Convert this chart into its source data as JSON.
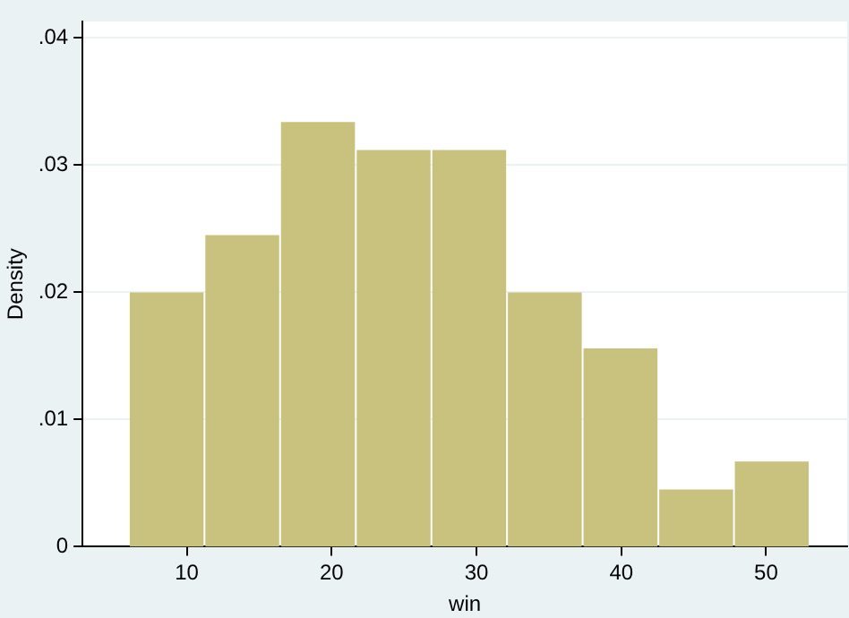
{
  "chart_data": {
    "type": "histogram",
    "xlabel": "win",
    "ylabel": "Density",
    "bins": [
      6,
      11.22,
      16.44,
      21.67,
      26.89,
      32.11,
      37.33,
      42.56,
      47.78,
      53
    ],
    "values": [
      0.02,
      0.0245,
      0.0334,
      0.0312,
      0.0312,
      0.02,
      0.0156,
      0.0045,
      0.0067
    ],
    "color": "#c9c27f",
    "xlim": [
      2.8,
      55.6
    ],
    "xticks": [
      10,
      20,
      30,
      40,
      50
    ],
    "ylim": [
      0,
      0.0413
    ],
    "yticks": [
      {
        "value": 0,
        "label": "0"
      },
      {
        "value": 0.01,
        "label": ".01"
      },
      {
        "value": 0.02,
        "label": ".02"
      },
      {
        "value": 0.03,
        "label": ".03"
      },
      {
        "value": 0.04,
        "label": ".04"
      }
    ],
    "grid": "y",
    "legend": false
  }
}
